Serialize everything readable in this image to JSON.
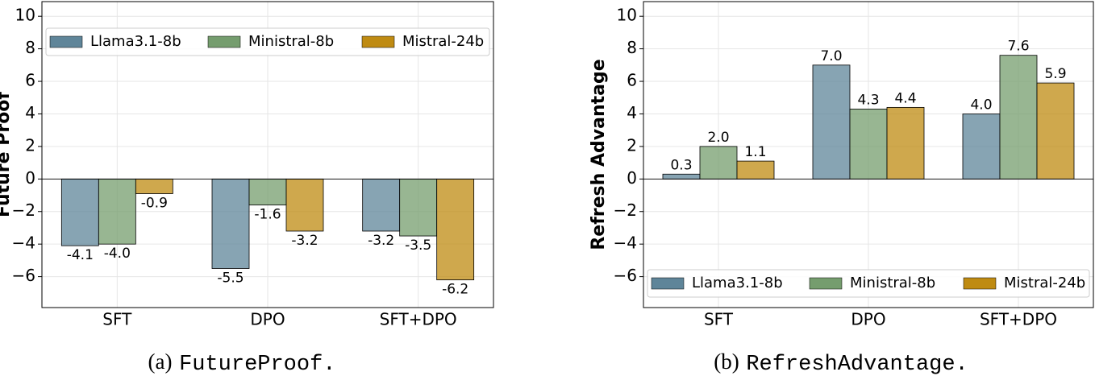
{
  "chart_data": [
    {
      "type": "bar",
      "ylabel": "Future Proof",
      "caption_label": "(a)",
      "caption_name": "FutureProof.",
      "categories": [
        "SFT",
        "DPO",
        "SFT+DPO"
      ],
      "series": [
        {
          "name": "Llama3.1-8b",
          "color": "#5f8599",
          "values": [
            -4.1,
            -5.5,
            -3.2
          ],
          "value_labels": [
            "-4.1",
            "-5.5",
            "-3.2"
          ]
        },
        {
          "name": "Ministral-8b",
          "color": "#759d6e",
          "values": [
            -4.0,
            -1.6,
            -3.5
          ],
          "value_labels": [
            "-4.0",
            "-1.6",
            "-3.5"
          ]
        },
        {
          "name": "Mistral-24b",
          "color": "#bf8b12",
          "values": [
            -0.9,
            -3.2,
            -6.2
          ],
          "value_labels": [
            "-0.9",
            "-3.2",
            "-6.2"
          ]
        }
      ],
      "ylim": [
        -7.9,
        10.9
      ],
      "yticks": [
        {
          "value": -6,
          "label": "−6"
        },
        {
          "value": -4,
          "label": "−4"
        },
        {
          "value": -2,
          "label": "−2"
        },
        0,
        2,
        4,
        6,
        8,
        10
      ],
      "grid": true,
      "legend": "upper"
    },
    {
      "type": "bar",
      "ylabel": "Refresh Advantage",
      "caption_label": "(b)",
      "caption_name": "RefreshAdvantage.",
      "categories": [
        "SFT",
        "DPO",
        "SFT+DPO"
      ],
      "series": [
        {
          "name": "Llama3.1-8b",
          "color": "#5f8599",
          "values": [
            0.3,
            7.0,
            4.0
          ],
          "value_labels": [
            "0.3",
            "7.0",
            "4.0"
          ]
        },
        {
          "name": "Ministral-8b",
          "color": "#759d6e",
          "values": [
            2.0,
            4.3,
            7.6
          ],
          "value_labels": [
            "2.0",
            "4.3",
            "7.6"
          ]
        },
        {
          "name": "Mistral-24b",
          "color": "#bf8b12",
          "values": [
            1.1,
            4.4,
            5.9
          ],
          "value_labels": [
            "1.1",
            "4.4",
            "5.9"
          ]
        }
      ],
      "ylim": [
        -7.9,
        10.9
      ],
      "yticks": [
        {
          "value": -6,
          "label": "−6"
        },
        {
          "value": -4,
          "label": "−4"
        },
        {
          "value": -2,
          "label": "−2"
        },
        0,
        2,
        4,
        6,
        8,
        10
      ],
      "grid": true,
      "legend": "lower"
    }
  ]
}
